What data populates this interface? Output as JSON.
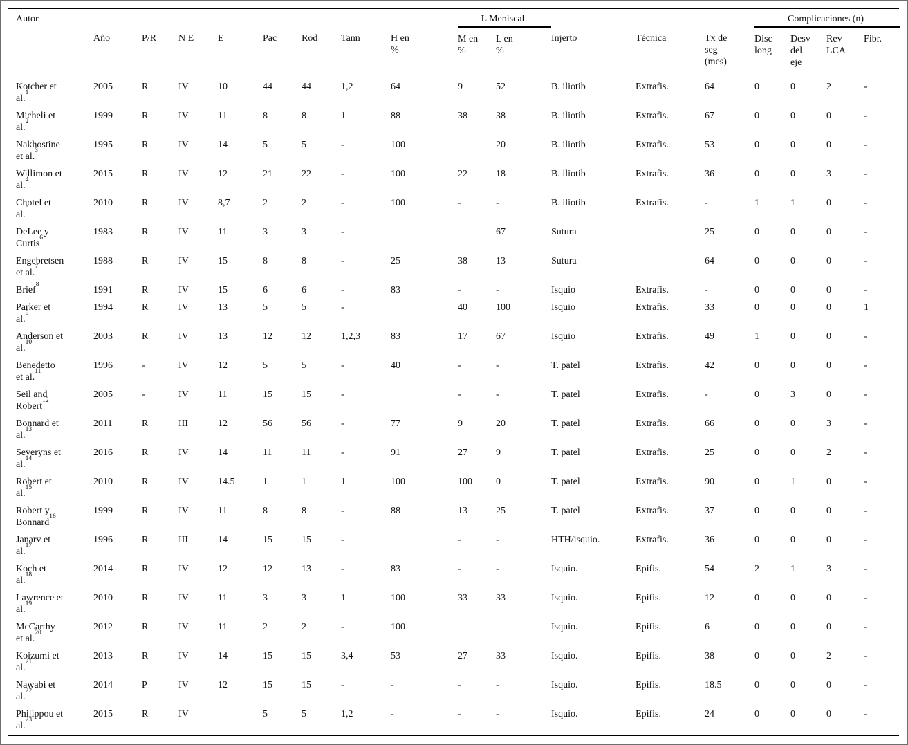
{
  "colors": {
    "ink": "#111111",
    "rule": "#000000",
    "background": "#ffffff",
    "frame_border": "#6e6e6e"
  },
  "table": {
    "header": {
      "autor": "Autor",
      "group_meniscal": "L Meniscal",
      "group_complicaciones": "Complicaciones (n)"
    },
    "columns": [
      {
        "key": "ano",
        "label": "Año"
      },
      {
        "key": "p-r",
        "label": "P/R"
      },
      {
        "key": "n-e",
        "label": "N E"
      },
      {
        "key": "e",
        "label": "E"
      },
      {
        "key": "pac",
        "label": "Pac"
      },
      {
        "key": "rod",
        "label": "Rod"
      },
      {
        "key": "tann",
        "label": "Tann"
      },
      {
        "key": "h-en-pct",
        "label": "H en\n%"
      },
      {
        "key": "m-en-pct",
        "label": "M en\n%"
      },
      {
        "key": "l-en-pct",
        "label": "L en\n%"
      },
      {
        "key": "injerto",
        "label": "Injerto"
      },
      {
        "key": "tecnica",
        "label": "Técnica"
      },
      {
        "key": "tx-seg",
        "label": "Tx de\nseg\n(mes)"
      },
      {
        "key": "disc-long",
        "label": "Disc\nlong"
      },
      {
        "key": "desv-eje",
        "label": "Desv\ndel\neje"
      },
      {
        "key": "rev-lca",
        "label": "Rev\nLCA"
      },
      {
        "key": "fibr",
        "label": "Fibr."
      }
    ],
    "rows": [
      {
        "author_lines": [
          "Kotcher et",
          "al."
        ],
        "ref": "1",
        "values": [
          "2005",
          "R",
          "IV",
          "10",
          "44",
          "44",
          "1,2",
          "64",
          "9",
          "52",
          "B. iliotib",
          "Extrafis.",
          "64",
          "0",
          "0",
          "2",
          "-"
        ]
      },
      {
        "author_lines": [
          "Micheli et",
          "al."
        ],
        "ref": "2",
        "values": [
          "1999",
          "R",
          "IV",
          "11",
          "8",
          "8",
          "1",
          "88",
          "38",
          "38",
          "B. iliotib",
          "Extrafis.",
          "67",
          "0",
          "0",
          "0",
          "-"
        ]
      },
      {
        "author_lines": [
          "Nakhostine",
          "et al."
        ],
        "ref": "3",
        "values": [
          "1995",
          "R",
          "IV",
          "14",
          "5",
          "5",
          "-",
          "100",
          "",
          "20",
          "B. iliotib",
          "Extrafis.",
          "53",
          "0",
          "0",
          "0",
          "-"
        ]
      },
      {
        "author_lines": [
          "Willimon et",
          "al."
        ],
        "ref": "4",
        "values": [
          "2015",
          "R",
          "IV",
          "12",
          "21",
          "22",
          "-",
          "100",
          "22",
          "18",
          "B. iliotib",
          "Extrafis.",
          "36",
          "0",
          "0",
          "3",
          "-"
        ]
      },
      {
        "author_lines": [
          "Chotel et",
          "al."
        ],
        "ref": "5",
        "values": [
          "2010",
          "R",
          "IV",
          "8,7",
          "2",
          "2",
          "-",
          "100",
          "-",
          "-",
          "B. iliotib",
          "Extrafis.",
          "-",
          "1",
          "1",
          "0",
          "-"
        ]
      },
      {
        "author_lines": [
          "DeLee y",
          "Curtis"
        ],
        "ref": "6",
        "values": [
          "1983",
          "R",
          "IV",
          "11",
          "3",
          "3",
          "-",
          "",
          "",
          "67",
          "Sutura",
          "",
          "25",
          "0",
          "0",
          "0",
          "-"
        ]
      },
      {
        "author_lines": [
          "Engebretsen",
          "et al."
        ],
        "ref": "7",
        "values": [
          "1988",
          "R",
          "IV",
          "15",
          "8",
          "8",
          "-",
          "25",
          "38",
          "13",
          "Sutura",
          "",
          "64",
          "0",
          "0",
          "0",
          "-"
        ]
      },
      {
        "author_lines": [
          "Brief"
        ],
        "ref": "8",
        "values": [
          "1991",
          "R",
          "IV",
          "15",
          "6",
          "6",
          "-",
          "83",
          "-",
          "-",
          "Isquio",
          "Extrafis.",
          "-",
          "0",
          "0",
          "0",
          "-"
        ]
      },
      {
        "author_lines": [
          "Parker et",
          "al."
        ],
        "ref": "9",
        "values": [
          "1994",
          "R",
          "IV",
          "13",
          "5",
          "5",
          "-",
          "",
          "40",
          "100",
          "Isquio",
          "Extrafis.",
          "33",
          "0",
          "0",
          "0",
          "1"
        ]
      },
      {
        "author_lines": [
          "Anderson et",
          "al."
        ],
        "ref": "10",
        "values": [
          "2003",
          "R",
          "IV",
          "13",
          "12",
          "12",
          "1,2,3",
          "83",
          "17",
          "67",
          "Isquio",
          "Extrafis.",
          "49",
          "1",
          "0",
          "0",
          "-"
        ]
      },
      {
        "author_lines": [
          "Benedetto",
          "et al."
        ],
        "ref": "11",
        "values": [
          "1996",
          "-",
          "IV",
          "12",
          "5",
          "5",
          "-",
          "40",
          "-",
          "-",
          "T. patel",
          "Extrafis.",
          "42",
          "0",
          "0",
          "0",
          "-"
        ]
      },
      {
        "author_lines": [
          "Seil and",
          "Robert"
        ],
        "ref": "12",
        "values": [
          "2005",
          "-",
          "IV",
          "11",
          "15",
          "15",
          "-",
          "",
          "-",
          "-",
          "T. patel",
          "Extrafis.",
          "-",
          "0",
          "3",
          "0",
          "-"
        ]
      },
      {
        "author_lines": [
          "Bonnard et",
          "al."
        ],
        "ref": "13",
        "values": [
          "2011",
          "R",
          "III",
          "12",
          "56",
          "56",
          "-",
          "77",
          "9",
          "20",
          "T. patel",
          "Extrafis.",
          "66",
          "0",
          "0",
          "3",
          "-"
        ]
      },
      {
        "author_lines": [
          "Severyns et",
          "al."
        ],
        "ref": "14",
        "values": [
          "2016",
          "R",
          "IV",
          "14",
          "11",
          "11",
          "-",
          "91",
          "27",
          "9",
          "T. patel",
          "Extrafis.",
          "25",
          "0",
          "0",
          "2",
          "-"
        ]
      },
      {
        "author_lines": [
          "Robert et",
          "al."
        ],
        "ref": "15",
        "values": [
          "2010",
          "R",
          "IV",
          "14.5",
          "1",
          "1",
          "1",
          "100",
          "100",
          "0",
          "T. patel",
          "Extrafis.",
          "90",
          "0",
          "1",
          "0",
          "-"
        ]
      },
      {
        "author_lines": [
          "Robert y",
          "Bonnard"
        ],
        "ref": "16",
        "values": [
          "1999",
          "R",
          "IV",
          "11",
          "8",
          "8",
          "-",
          "88",
          "13",
          "25",
          "T. patel",
          "Extrafis.",
          "37",
          "0",
          "0",
          "0",
          "-"
        ]
      },
      {
        "author_lines": [
          "Janarv et",
          "al."
        ],
        "ref": "17",
        "values": [
          "1996",
          "R",
          "III",
          "14",
          "15",
          "15",
          "-",
          "",
          "-",
          "-",
          "HTH/isquio.",
          "Extrafis.",
          "36",
          "0",
          "0",
          "0",
          "-"
        ]
      },
      {
        "author_lines": [
          "Koch et",
          "al."
        ],
        "ref": "18",
        "values": [
          "2014",
          "R",
          "IV",
          "12",
          "12",
          "13",
          "-",
          "83",
          "-",
          "-",
          "Isquio.",
          "Epifis.",
          "54",
          "2",
          "1",
          "3",
          "-"
        ]
      },
      {
        "author_lines": [
          "Lawrence et",
          "al."
        ],
        "ref": "19",
        "values": [
          "2010",
          "R",
          "IV",
          "11",
          "3",
          "3",
          "1",
          "100",
          "33",
          "33",
          "Isquio.",
          "Epifis.",
          "12",
          "0",
          "0",
          "0",
          "-"
        ]
      },
      {
        "author_lines": [
          "McCarthy",
          "et al."
        ],
        "ref": "20",
        "values": [
          "2012",
          "R",
          "IV",
          "11",
          "2",
          "2",
          "-",
          "100",
          "",
          "",
          "Isquio.",
          "Epifis.",
          "6",
          "0",
          "0",
          "0",
          "-"
        ]
      },
      {
        "author_lines": [
          "Koizumi et",
          "al."
        ],
        "ref": "21",
        "values": [
          "2013",
          "R",
          "IV",
          "14",
          "15",
          "15",
          "3,4",
          "53",
          "27",
          "33",
          "Isquio.",
          "Epifis.",
          "38",
          "0",
          "0",
          "2",
          "-"
        ]
      },
      {
        "author_lines": [
          "Nawabi et",
          "al."
        ],
        "ref": "22",
        "values": [
          "2014",
          "P",
          "IV",
          "12",
          "15",
          "15",
          "-",
          "-",
          "-",
          "-",
          "Isquio.",
          "Epifis.",
          "18.5",
          "0",
          "0",
          "0",
          "-"
        ]
      },
      {
        "author_lines": [
          "Philippou et",
          "al."
        ],
        "ref": "23",
        "values": [
          "2015",
          "R",
          "IV",
          "",
          "5",
          "5",
          "1,2",
          "-",
          "-",
          "-",
          "Isquio.",
          "Epifis.",
          "24",
          "0",
          "0",
          "0",
          "-"
        ]
      }
    ]
  }
}
